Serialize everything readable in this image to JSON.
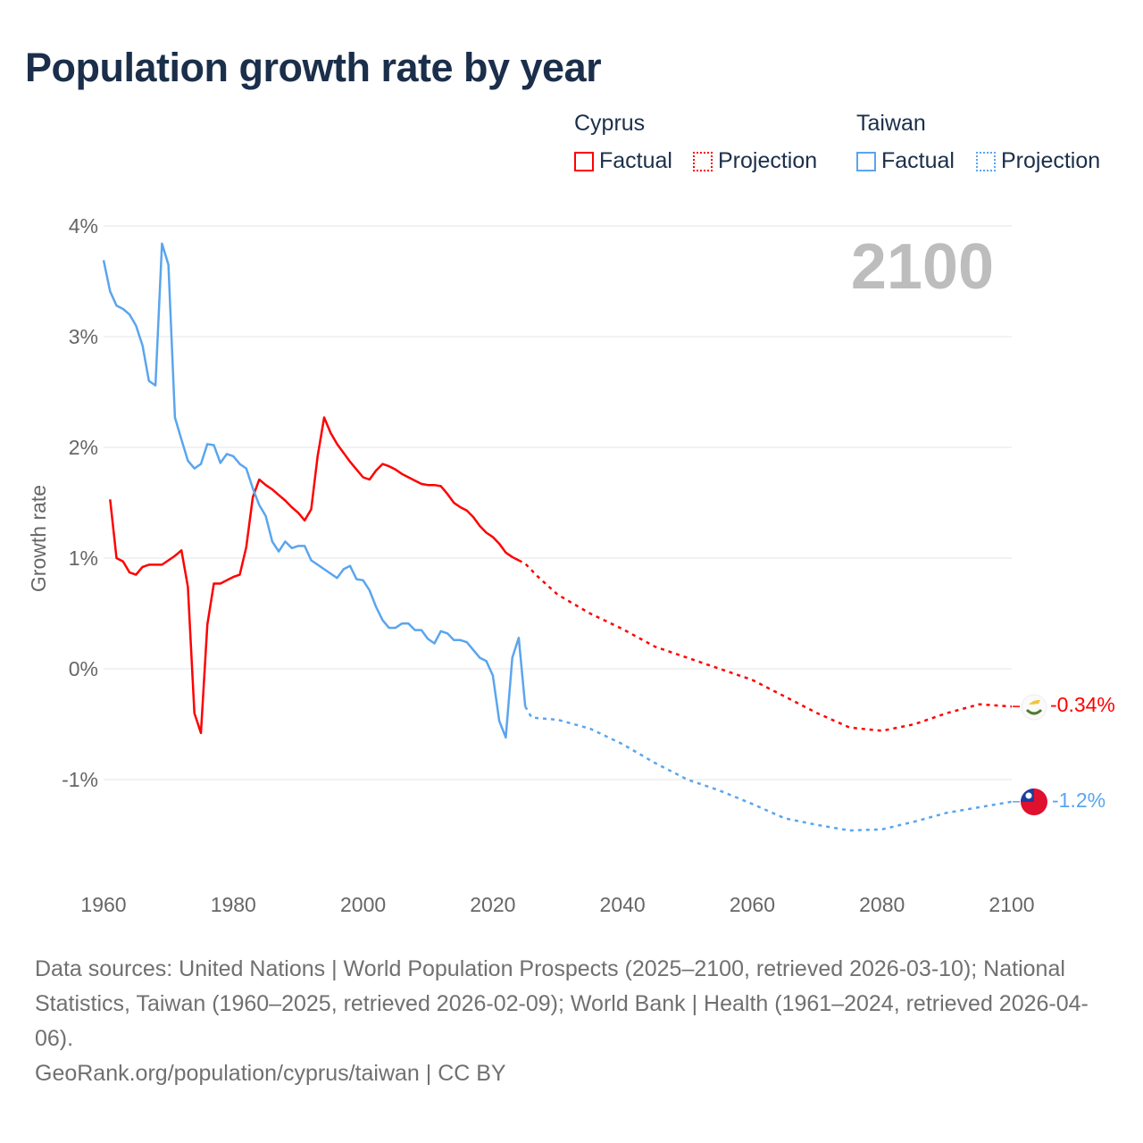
{
  "title": "Population growth rate by year",
  "legend": {
    "groups": [
      {
        "name": "Cyprus",
        "color": "#ff0000",
        "items": [
          "Factual",
          "Projection"
        ]
      },
      {
        "name": "Taiwan",
        "color": "#5aa5ee",
        "items": [
          "Factual",
          "Projection"
        ]
      }
    ]
  },
  "year_label": "2100",
  "end_labels": {
    "cyprus": "-0.34%",
    "taiwan": "-1.2%"
  },
  "footer": {
    "sources": "Data sources: United Nations | World Population Prospects (2025–2100, retrieved 2026-03-10); National Statistics, Taiwan (1960–2025, retrieved 2026-02-09); World Bank | Health (1961–2024, retrieved 2026-04-06).",
    "credit": "GeoRank.org/population/cyprus/taiwan | CC BY"
  },
  "chart_data": {
    "type": "line",
    "title": "Population growth rate by year",
    "xlabel": "",
    "ylabel": "Growth rate",
    "xlim": [
      1960,
      2100
    ],
    "ylim": [
      -2,
      4
    ],
    "xticks": [
      "1960",
      "1980",
      "2000",
      "2020",
      "2040",
      "2060",
      "2080",
      "2100"
    ],
    "yticks": [
      {
        "v": 4,
        "label": "4%"
      },
      {
        "v": 3,
        "label": "3%"
      },
      {
        "v": 2,
        "label": "2%"
      },
      {
        "v": 1,
        "label": "1%"
      },
      {
        "v": 0,
        "label": "0%"
      },
      {
        "v": -1,
        "label": "-1%"
      }
    ],
    "grid": true,
    "legend_position": "top-right",
    "series": [
      {
        "name": "Cyprus Factual",
        "color": "#ff0000",
        "dashed": false,
        "x": [
          1961,
          1962,
          1963,
          1964,
          1965,
          1966,
          1967,
          1968,
          1969,
          1970,
          1971,
          1972,
          1973,
          1974,
          1975,
          1976,
          1977,
          1978,
          1979,
          1980,
          1981,
          1982,
          1983,
          1984,
          1985,
          1986,
          1987,
          1988,
          1989,
          1990,
          1991,
          1992,
          1993,
          1994,
          1995,
          1996,
          1997,
          1998,
          1999,
          2000,
          2001,
          2002,
          2003,
          2004,
          2005,
          2006,
          2007,
          2008,
          2009,
          2010,
          2011,
          2012,
          2013,
          2014,
          2015,
          2016,
          2017,
          2018,
          2019,
          2020,
          2021,
          2022,
          2023,
          2024
        ],
        "y": [
          1.53,
          1.0,
          0.97,
          0.87,
          0.85,
          0.92,
          0.94,
          0.94,
          0.94,
          0.98,
          1.02,
          1.07,
          0.74,
          -0.4,
          -0.58,
          0.4,
          0.77,
          0.77,
          0.8,
          0.83,
          0.85,
          1.1,
          1.55,
          1.71,
          1.66,
          1.62,
          1.57,
          1.52,
          1.46,
          1.41,
          1.34,
          1.44,
          1.92,
          2.27,
          2.13,
          2.03,
          1.95,
          1.87,
          1.8,
          1.73,
          1.71,
          1.79,
          1.85,
          1.83,
          1.8,
          1.76,
          1.73,
          1.7,
          1.67,
          1.66,
          1.66,
          1.65,
          1.58,
          1.5,
          1.46,
          1.43,
          1.37,
          1.29,
          1.23,
          1.19,
          1.13,
          1.05,
          1.01,
          0.98
        ]
      },
      {
        "name": "Cyprus Projection",
        "color": "#ff0000",
        "dashed": true,
        "x": [
          2024,
          2025,
          2027,
          2030,
          2035,
          2040,
          2045,
          2050,
          2055,
          2060,
          2065,
          2070,
          2075,
          2080,
          2085,
          2090,
          2095,
          2100
        ],
        "y": [
          0.98,
          0.95,
          0.83,
          0.67,
          0.5,
          0.36,
          0.2,
          0.1,
          0.0,
          -0.1,
          -0.25,
          -0.4,
          -0.53,
          -0.56,
          -0.5,
          -0.4,
          -0.32,
          -0.34
        ]
      },
      {
        "name": "Taiwan Factual",
        "color": "#5aa5ee",
        "dashed": false,
        "x": [
          1960,
          1961,
          1962,
          1963,
          1964,
          1965,
          1966,
          1967,
          1968,
          1969,
          1970,
          1971,
          1972,
          1973,
          1974,
          1975,
          1976,
          1977,
          1978,
          1979,
          1980,
          1981,
          1982,
          1983,
          1984,
          1985,
          1986,
          1987,
          1988,
          1989,
          1990,
          1991,
          1992,
          1993,
          1994,
          1995,
          1996,
          1997,
          1998,
          1999,
          2000,
          2001,
          2002,
          2003,
          2004,
          2005,
          2006,
          2007,
          2008,
          2009,
          2010,
          2011,
          2012,
          2013,
          2014,
          2015,
          2016,
          2017,
          2018,
          2019,
          2020,
          2021,
          2022,
          2023,
          2024,
          2025
        ],
        "y": [
          3.69,
          3.41,
          3.28,
          3.25,
          3.2,
          3.1,
          2.92,
          2.6,
          2.56,
          3.84,
          3.65,
          2.27,
          2.07,
          1.88,
          1.81,
          1.85,
          2.03,
          2.02,
          1.86,
          1.94,
          1.92,
          1.85,
          1.81,
          1.63,
          1.48,
          1.38,
          1.15,
          1.06,
          1.15,
          1.09,
          1.11,
          1.11,
          0.98,
          0.94,
          0.9,
          0.86,
          0.82,
          0.9,
          0.93,
          0.81,
          0.8,
          0.71,
          0.56,
          0.44,
          0.37,
          0.37,
          0.41,
          0.41,
          0.35,
          0.35,
          0.27,
          0.23,
          0.34,
          0.32,
          0.26,
          0.26,
          0.24,
          0.17,
          0.1,
          0.07,
          -0.06,
          -0.47,
          -0.62,
          0.1,
          0.28,
          -0.34
        ]
      },
      {
        "name": "Taiwan Projection",
        "color": "#5aa5ee",
        "dashed": true,
        "x": [
          2025,
          2026,
          2030,
          2035,
          2040,
          2045,
          2050,
          2055,
          2060,
          2065,
          2070,
          2075,
          2080,
          2085,
          2090,
          2095,
          2100
        ],
        "y": [
          -0.34,
          -0.44,
          -0.46,
          -0.54,
          -0.68,
          -0.85,
          -1.0,
          -1.1,
          -1.22,
          -1.35,
          -1.41,
          -1.46,
          -1.45,
          -1.38,
          -1.3,
          -1.25,
          -1.2
        ]
      }
    ]
  }
}
